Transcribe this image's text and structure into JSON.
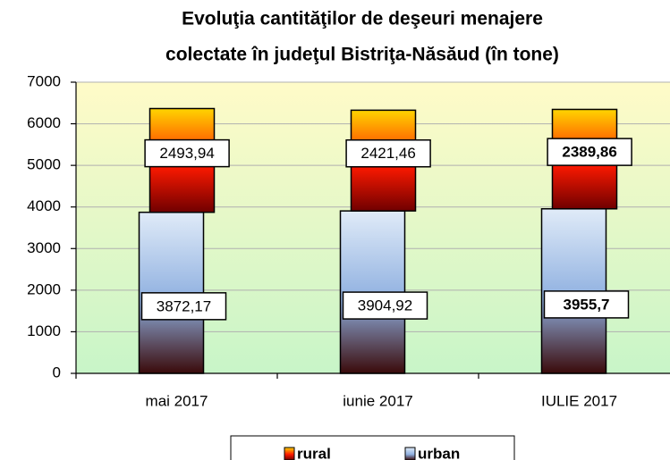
{
  "chart_data": {
    "type": "stacked_bar",
    "title": [
      "Evoluţia cantităţilor de deşeuri menajere",
      "colectate în judeţul Bistriţa-Năsăud (în tone)"
    ],
    "categories": [
      "mai 2017",
      "iunie 2017",
      "IULIE 2017"
    ],
    "series": [
      {
        "name": "urban",
        "color": "#8fb0e0",
        "values": [
          3872.17,
          3904.92,
          3955.7
        ],
        "value_labels": [
          "3872,17",
          "3904,92",
          "3955,7"
        ]
      },
      {
        "name": "rural",
        "color": "#ff1a00",
        "values": [
          2493.94,
          2421.46,
          2389.86
        ],
        "value_labels": [
          "2493,94",
          "2421,46",
          "2389,86"
        ]
      }
    ],
    "legend_order": [
      "rural",
      "urban"
    ],
    "ylim": [
      0,
      7000
    ],
    "yticks": [
      0,
      1000,
      2000,
      3000,
      4000,
      5000,
      6000,
      7000
    ],
    "grid": true
  }
}
